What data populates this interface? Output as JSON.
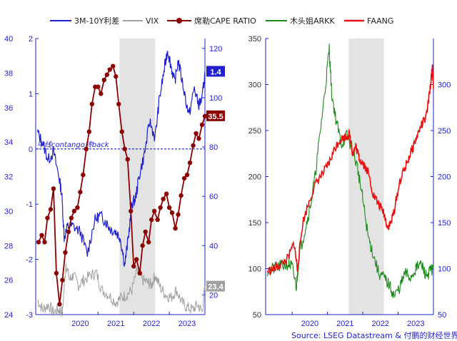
{
  "chart_data": [
    {
      "type": "line",
      "title": "",
      "legend": [
        {
          "name": "3M-10Y利差",
          "color": "#1f1fd0",
          "axis": "middle"
        },
        {
          "name": "VIX",
          "color": "#a0a0a0",
          "axis": "right"
        },
        {
          "name": "席勒CAPE RATIO",
          "color": "#8b0000",
          "axis": "left",
          "marker": "circle"
        }
      ],
      "x_ticks": [
        "2020",
        "2021",
        "2022",
        "2023"
      ],
      "x_range": [
        2019.25,
        2024.0
      ],
      "shaded_period": [
        2021.6,
        2022.6
      ],
      "left_axis": {
        "ticks": [
          24,
          26,
          28,
          30,
          32,
          34,
          36,
          38,
          40
        ],
        "range": [
          24,
          40
        ]
      },
      "middle_axis": {
        "ticks": [
          -3,
          -2,
          -1,
          0,
          1,
          2
        ],
        "range": [
          -3,
          2
        ]
      },
      "right_axis": {
        "ticks": [
          20,
          40,
          60,
          80,
          100,
          120
        ],
        "range": [
          12,
          124
        ]
      },
      "zero_line_label": "中线contango转back",
      "end_labels": [
        {
          "series": "3M-10Y利差",
          "text": "1.4",
          "color": "#1f1fd0"
        },
        {
          "series": "席勒CAPE RATIO",
          "text": "35.5",
          "color": "#8b0000"
        },
        {
          "series": "VIX",
          "text": "23.4",
          "color": "#a0a0a0"
        }
      ],
      "series": [
        {
          "name": "3M-10Y利差",
          "axis": "middle",
          "x": [
            2019.3,
            2019.45,
            2019.6,
            2019.75,
            2019.9,
            2019.98,
            2020.05,
            2020.15,
            2020.3,
            2020.5,
            2020.7,
            2020.9,
            2021.05,
            2021.2,
            2021.35,
            2021.5,
            2021.62,
            2021.75,
            2021.85,
            2021.95,
            2022.05,
            2022.15,
            2022.3,
            2022.45,
            2022.6,
            2022.72,
            2022.85,
            2022.95,
            2023.05,
            2023.15,
            2023.25,
            2023.4,
            2023.55,
            2023.7,
            2023.82,
            2023.92,
            2024.0
          ],
          "values": [
            0.3,
            0.1,
            -0.2,
            -0.05,
            -0.5,
            -0.8,
            -1.6,
            -1.4,
            -1.4,
            -1.5,
            -1.9,
            -1.3,
            -1.2,
            -1.3,
            -1.45,
            -1.5,
            -1.6,
            -2.1,
            -1.6,
            -1.0,
            -0.9,
            -0.5,
            -0.1,
            0.5,
            0.2,
            0.9,
            1.4,
            1.8,
            1.5,
            1.2,
            1.6,
            1.1,
            0.6,
            1.1,
            0.8,
            0.9,
            1.4
          ]
        },
        {
          "name": "VIX",
          "axis": "right",
          "x": [
            2019.3,
            2019.45,
            2019.6,
            2019.75,
            2019.9,
            2020.0,
            2020.1,
            2020.2,
            2020.3,
            2020.45,
            2020.6,
            2020.8,
            2020.95,
            2021.1,
            2021.3,
            2021.5,
            2021.65,
            2021.8,
            2021.95,
            2022.1,
            2022.25,
            2022.4,
            2022.5,
            2022.6,
            2022.75,
            2022.9,
            2023.05,
            2023.2,
            2023.35,
            2023.5,
            2023.65,
            2023.8,
            2023.92,
            2024.0
          ],
          "values": [
            18,
            14,
            16,
            13,
            14,
            13,
            33,
            26,
            28,
            24,
            26,
            28,
            29,
            22,
            20,
            17,
            19,
            20,
            22,
            30,
            26,
            25,
            24,
            28,
            23,
            20,
            19,
            22,
            17,
            15,
            14,
            16,
            13,
            23.4
          ]
        },
        {
          "name": "席勒CAPE RATIO",
          "axis": "left",
          "x": [
            2019.33,
            2019.42,
            2019.5,
            2019.58,
            2019.67,
            2019.75,
            2019.83,
            2019.92,
            2020.0,
            2020.08,
            2020.17,
            2020.25,
            2020.33,
            2020.42,
            2020.5,
            2020.58,
            2020.67,
            2020.75,
            2020.83,
            2020.92,
            2021.0,
            2021.08,
            2021.17,
            2021.25,
            2021.33,
            2021.42,
            2021.5,
            2021.58,
            2021.67,
            2021.75,
            2021.83,
            2021.92,
            2022.0,
            2022.08,
            2022.17,
            2022.25,
            2022.33,
            2022.42,
            2022.5,
            2022.58,
            2022.67,
            2022.75,
            2022.83,
            2022.92,
            2023.0,
            2023.08,
            2023.17,
            2023.25,
            2023.33,
            2023.42,
            2023.5,
            2023.58,
            2023.67,
            2023.75,
            2023.83,
            2023.92,
            2024.0
          ],
          "values": [
            28.2,
            28.6,
            28.2,
            29.6,
            30.1,
            31.3,
            26.4,
            24.6,
            26.0,
            27.6,
            28.8,
            29.6,
            30.0,
            30.2,
            31.1,
            32.1,
            33.6,
            34.6,
            36.2,
            37.2,
            37.2,
            36.8,
            37.6,
            37.9,
            38.2,
            38.4,
            37.8,
            36.2,
            34.6,
            33.6,
            33.0,
            30.0,
            26.8,
            27.2,
            26.4,
            28.0,
            28.8,
            28.2,
            29.5,
            30.0,
            29.5,
            30.2,
            30.7,
            31.0,
            30.2,
            29.9,
            29.0,
            29.8,
            30.9,
            31.9,
            32.1,
            32.8,
            33.8,
            34.5,
            34.2,
            35.0,
            35.5
          ]
        }
      ]
    },
    {
      "type": "line",
      "title": "",
      "legend": [
        {
          "name": "木头姐ARKK",
          "color": "#1a8a1a",
          "axis": "right"
        },
        {
          "name": "FAANG",
          "color": "#e81010",
          "axis": "left"
        }
      ],
      "x_ticks": [
        "2020",
        "2021",
        "2022",
        "2023"
      ],
      "x_range": [
        2019.25,
        2024.0
      ],
      "shaded_period": [
        2021.6,
        2022.6
      ],
      "left_axis": {
        "ticks": [
          50,
          100,
          150,
          200,
          250,
          300,
          350
        ],
        "range": [
          50,
          350
        ]
      },
      "right_axis": {
        "ticks": [
          50,
          100,
          150,
          200,
          250,
          300
        ],
        "range": [
          50,
          350
        ]
      },
      "series": [
        {
          "name": "木头姐ARKK",
          "axis": "right",
          "x": [
            2019.3,
            2019.5,
            2019.7,
            2019.9,
            2020.0,
            2020.12,
            2020.2,
            2020.35,
            2020.5,
            2020.65,
            2020.8,
            2020.95,
            2021.05,
            2021.12,
            2021.25,
            2021.4,
            2021.55,
            2021.7,
            2021.85,
            2022.0,
            2022.15,
            2022.3,
            2022.45,
            2022.6,
            2022.75,
            2022.9,
            2023.05,
            2023.2,
            2023.35,
            2023.5,
            2023.65,
            2023.8,
            2023.92,
            2024.0
          ],
          "values": [
            98,
            100,
            103,
            105,
            102,
            80,
            115,
            140,
            165,
            200,
            250,
            300,
            340,
            290,
            260,
            235,
            245,
            230,
            210,
            175,
            135,
            115,
            95,
            90,
            82,
            70,
            80,
            95,
            90,
            100,
            105,
            92,
            98,
            100
          ]
        },
        {
          "name": "FAANG",
          "axis": "left",
          "x": [
            2019.3,
            2019.5,
            2019.7,
            2019.9,
            2020.05,
            2020.15,
            2020.3,
            2020.5,
            2020.7,
            2020.9,
            2021.05,
            2021.2,
            2021.35,
            2021.5,
            2021.62,
            2021.72,
            2021.8,
            2021.9,
            2022.0,
            2022.15,
            2022.3,
            2022.45,
            2022.6,
            2022.7,
            2022.8,
            2022.9,
            2023.05,
            2023.2,
            2023.35,
            2023.5,
            2023.65,
            2023.8,
            2023.92,
            2023.97,
            2024.0
          ],
          "values": [
            97,
            100,
            105,
            112,
            128,
            100,
            150,
            175,
            195,
            205,
            215,
            230,
            240,
            243,
            246,
            225,
            233,
            220,
            215,
            205,
            180,
            170,
            160,
            145,
            150,
            165,
            195,
            210,
            225,
            240,
            255,
            265,
            300,
            320,
            295
          ]
        }
      ]
    }
  ],
  "source_text": "Source: LSEG Datastream & 付鹏的财经世界"
}
